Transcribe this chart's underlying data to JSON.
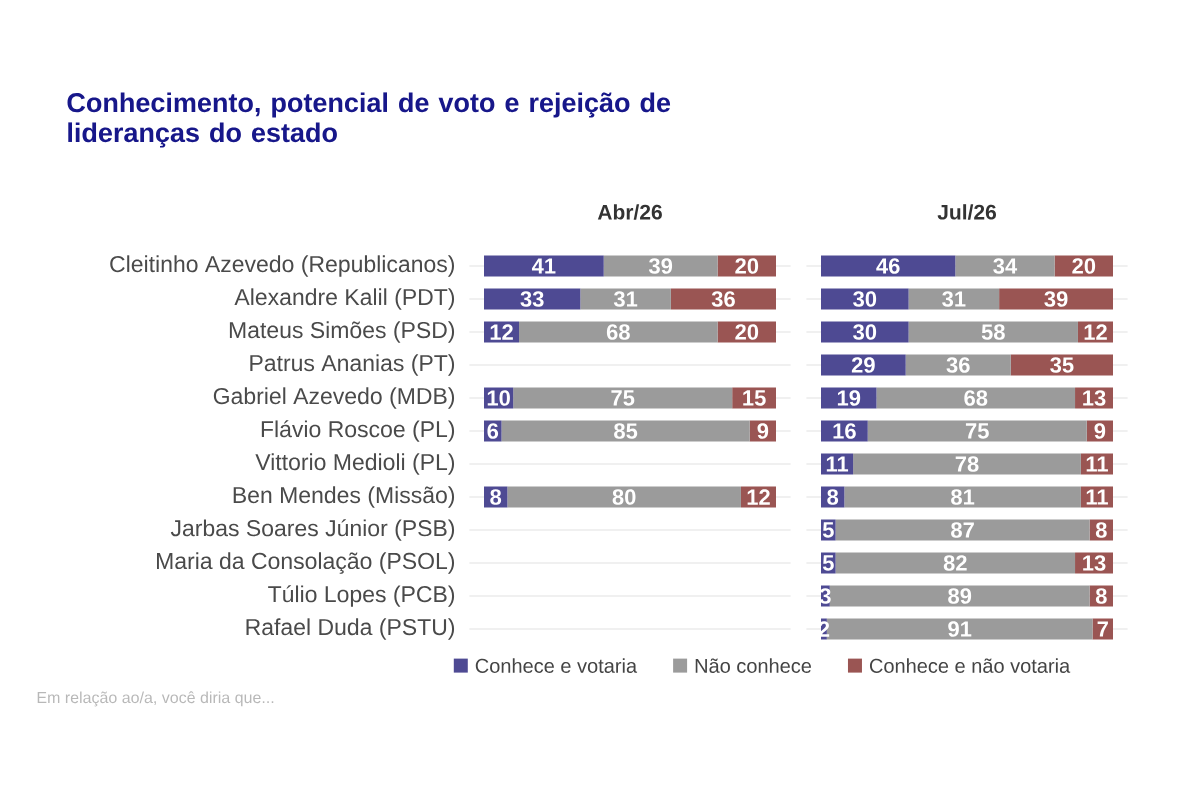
{
  "chart_data": [
    {
      "type": "bar",
      "orientation": "horizontal",
      "stacked": true,
      "title": "Abr/26",
      "categories": [
        "Cleitinho Azevedo (Republicanos)",
        "Alexandre Kalil (PDT)",
        "Mateus Simões (PSD)",
        "Patrus Ananias (PT)",
        "Gabriel Azevedo (MDB)",
        "Flávio Roscoe (PL)",
        "Vittorio Medioli (PL)",
        "Ben Mendes (Missão)",
        "Jarbas Soares Júnior (PSB)",
        "Maria da Consolação (PSOL)",
        "Túlio Lopes (PCB)",
        "Rafael Duda (PSTU)"
      ],
      "series": [
        {
          "color": "#4e4a93",
          "values": [
            41,
            33,
            12,
            null,
            10,
            6,
            null,
            8,
            null,
            null,
            null,
            null
          ]
        },
        {
          "color": "#9b9b9b",
          "values": [
            39,
            31,
            68,
            null,
            75,
            85,
            null,
            80,
            null,
            null,
            null,
            null
          ]
        },
        {
          "color": "#9a5553",
          "values": [
            20,
            36,
            20,
            null,
            15,
            9,
            null,
            12,
            null,
            null,
            null,
            null
          ]
        }
      ],
      "data_labels": true,
      "grid": "y",
      "annotations": [
        "Conhecimento, potencial de voto e rejeição de lideranças do estado",
        "Em relação ao/a, você diria que..."
      ]
    },
    {
      "type": "bar",
      "orientation": "horizontal",
      "stacked": true,
      "title": "Jul/26",
      "categories": [
        null,
        null,
        null,
        null,
        null,
        null,
        null,
        null,
        null,
        null,
        null,
        null
      ],
      "series": [
        {
          "name": "Conhece e votaria",
          "color": "#4e4a93",
          "values": [
            46,
            30,
            30,
            29,
            19,
            16,
            11,
            8,
            5,
            5,
            3,
            2
          ]
        },
        {
          "name": "Não conhece",
          "color": "#9b9b9b",
          "values": [
            34,
            31,
            58,
            36,
            68,
            75,
            78,
            81,
            87,
            82,
            89,
            91
          ]
        },
        {
          "name": "Conhece e não votaria",
          "color": "#9a5553",
          "values": [
            20,
            39,
            12,
            35,
            13,
            9,
            11,
            11,
            8,
            13,
            8,
            7
          ]
        }
      ],
      "data_labels": true,
      "grid": "y",
      "legend": "bottom"
    }
  ]
}
